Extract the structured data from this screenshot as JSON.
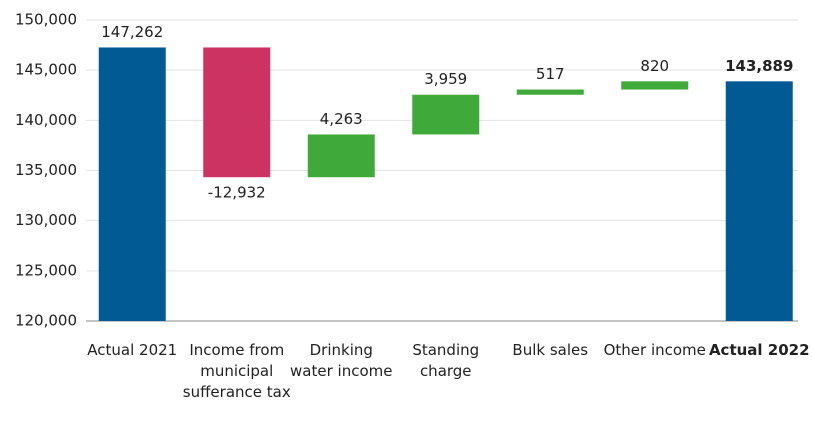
{
  "chart_data": {
    "type": "waterfall",
    "categories": [
      "Actual 2021",
      "Income from municipal sufferance tax",
      "Drinking water income",
      "Standing charge",
      "Bulk sales",
      "Other income",
      "Actual 2022"
    ],
    "kinds": [
      "total",
      "delta",
      "delta",
      "delta",
      "delta",
      "delta",
      "total"
    ],
    "values": [
      147262,
      -12932,
      4263,
      3959,
      517,
      820,
      143889
    ],
    "value_labels": [
      "147,262",
      "-12,932",
      "4,263",
      "3,959",
      "517",
      "820",
      "143,889"
    ],
    "colors": [
      "#005a94",
      "#cc3363",
      "#3fa93a",
      "#3fa93a",
      "#3fa93a",
      "#3fa93a",
      "#005a94"
    ],
    "ylim": [
      120000,
      150000
    ],
    "yticks": [
      {
        "value": 120000,
        "label": "120,000"
      },
      {
        "value": 125000,
        "label": "125,000"
      },
      {
        "value": 130000,
        "label": "130,000"
      },
      {
        "value": 135000,
        "label": "135,000"
      },
      {
        "value": 140000,
        "label": "140,000"
      },
      {
        "value": 145000,
        "label": "145,000"
      },
      {
        "value": 150000,
        "label": "150,000"
      }
    ],
    "grid": true
  }
}
